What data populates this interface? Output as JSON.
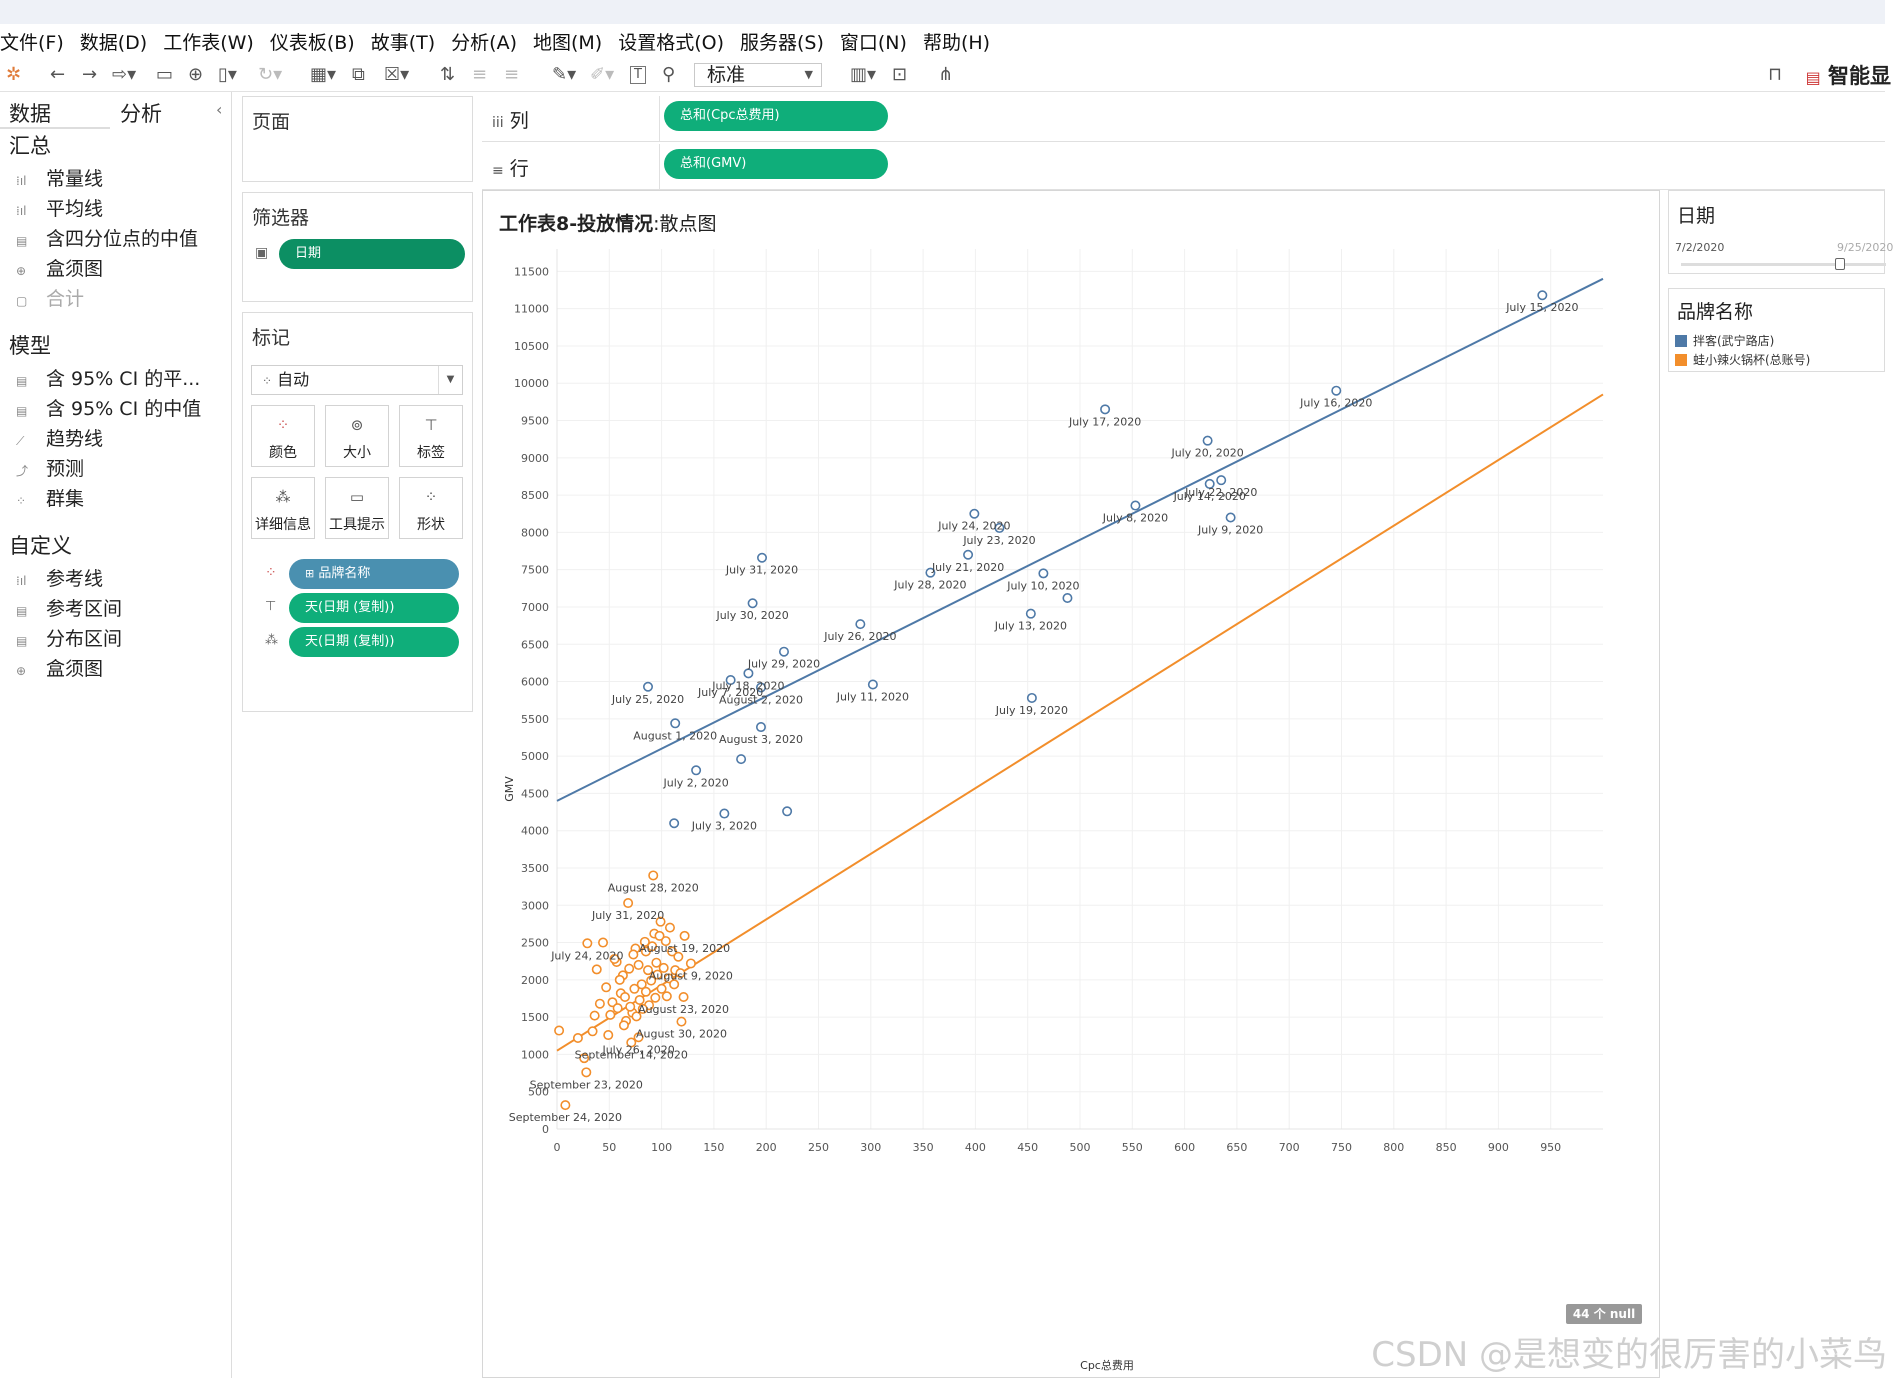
{
  "menu": [
    "文件(F)",
    "数据(D)",
    "工作表(W)",
    "仪表板(B)",
    "故事(T)",
    "分析(A)",
    "地图(M)",
    "设置格式(O)",
    "服务器(S)",
    "窗口(N)",
    "帮助(H)"
  ],
  "toolbar": {
    "zoom": "标准",
    "brand": "智能显"
  },
  "left": {
    "tabs": [
      "数据",
      "分析"
    ],
    "sections": [
      {
        "title": "汇总",
        "items": [
          {
            "label": "常量线",
            "enabled": true
          },
          {
            "label": "平均线",
            "enabled": true
          },
          {
            "label": "含四分位点的中值",
            "enabled": true
          },
          {
            "label": "盒须图",
            "enabled": true
          },
          {
            "label": "合计",
            "enabled": false
          }
        ]
      },
      {
        "title": "模型",
        "items": [
          {
            "label": "含 95% CI 的平...",
            "enabled": true
          },
          {
            "label": "含 95% CI 的中值",
            "enabled": true
          },
          {
            "label": "趋势线",
            "enabled": true
          },
          {
            "label": "预测",
            "enabled": true
          },
          {
            "label": "群集",
            "enabled": true
          }
        ]
      },
      {
        "title": "自定义",
        "items": [
          {
            "label": "参考线",
            "enabled": true
          },
          {
            "label": "参考区间",
            "enabled": true
          },
          {
            "label": "分布区间",
            "enabled": true
          },
          {
            "label": "盒须图",
            "enabled": true
          }
        ]
      }
    ]
  },
  "pages": {
    "title": "页面"
  },
  "filters": {
    "title": "筛选器",
    "pill": "日期"
  },
  "marks": {
    "title": "标记",
    "type": "自动",
    "buttons": [
      "颜色",
      "大小",
      "标签",
      "详细信息",
      "工具提示",
      "形状"
    ],
    "pills": [
      "品牌名称",
      "天(日期 (复制))",
      "天(日期 (复制))"
    ]
  },
  "shelves": {
    "columns_label": "列",
    "columns_pill": "总和(Cpc总费用)",
    "rows_label": "行",
    "rows_pill": "总和(GMV)"
  },
  "view": {
    "title_bold": "工作表8-投放情况",
    "title_rest": ":散点图",
    "null_badge": "44 个 null"
  },
  "date_filter": {
    "title": "日期",
    "start": "7/2/2020",
    "end": "9/25/2020"
  },
  "legend": {
    "title": "品牌名称",
    "items": [
      {
        "label": "拌客(武宁路店)",
        "color": "#4e79a7"
      },
      {
        "label": "蛙小辣火锅杯(总账号)",
        "color": "#f28e2b"
      }
    ]
  },
  "watermark": "CSDN @是想变的很厉害的小菜鸟",
  "chart_data": {
    "type": "scatter",
    "xlabel": "Cpc总费用",
    "ylabel": "GMV",
    "xlim": [
      0,
      1000
    ],
    "ylim": [
      0,
      11800
    ],
    "xticks": [
      0,
      50,
      100,
      150,
      200,
      250,
      300,
      350,
      400,
      450,
      500,
      550,
      600,
      650,
      700,
      750,
      800,
      850,
      900,
      950
    ],
    "yticks": [
      0,
      500,
      1000,
      1500,
      2000,
      2500,
      3000,
      3500,
      4000,
      4500,
      5000,
      5500,
      6000,
      6500,
      7000,
      7500,
      8000,
      8500,
      9000,
      9500,
      10000,
      10500,
      11000,
      11500
    ],
    "grid": true,
    "trendlines": [
      {
        "series": "拌客(武宁路店)",
        "x": [
          0,
          1000
        ],
        "y": [
          4400,
          11400
        ]
      },
      {
        "series": "蛙小辣火锅杯(总账号)",
        "x": [
          0,
          1000
        ],
        "y": [
          1050,
          9850
        ]
      }
    ],
    "series": [
      {
        "name": "拌客(武宁路店)",
        "color": "#4e79a7",
        "points": [
          {
            "x": 942,
            "y": 11180,
            "label": "July 15, 2020"
          },
          {
            "x": 745,
            "y": 9900,
            "label": "July 16, 2020"
          },
          {
            "x": 524,
            "y": 9650,
            "label": "July 17, 2020"
          },
          {
            "x": 622,
            "y": 9230,
            "label": "July 20, 2020"
          },
          {
            "x": 635,
            "y": 8700,
            "label": "July 22, 2020"
          },
          {
            "x": 624,
            "y": 8650,
            "label": "July 14, 2020"
          },
          {
            "x": 553,
            "y": 8360,
            "label": "July 8, 2020"
          },
          {
            "x": 644,
            "y": 8200,
            "label": "July 9, 2020"
          },
          {
            "x": 399,
            "y": 8250,
            "label": "July 24, 2020"
          },
          {
            "x": 423,
            "y": 8060,
            "label": "July 23, 2020"
          },
          {
            "x": 393,
            "y": 7700,
            "label": "July 21, 2020"
          },
          {
            "x": 196,
            "y": 7660,
            "label": "July 31, 2020"
          },
          {
            "x": 357,
            "y": 7460,
            "label": "July 28, 2020"
          },
          {
            "x": 465,
            "y": 7450,
            "label": "July 10, 2020"
          },
          {
            "x": 488,
            "y": 7120,
            "label": ""
          },
          {
            "x": 187,
            "y": 7050,
            "label": "July 30, 2020"
          },
          {
            "x": 453,
            "y": 6910,
            "label": "July 13, 2020"
          },
          {
            "x": 290,
            "y": 6770,
            "label": "July 26, 2020"
          },
          {
            "x": 217,
            "y": 6400,
            "label": "July 29, 2020"
          },
          {
            "x": 183,
            "y": 6110,
            "label": "July 18, 2020"
          },
          {
            "x": 166,
            "y": 6020,
            "label": "July 7, 2020"
          },
          {
            "x": 87,
            "y": 5930,
            "label": "July 25, 2020"
          },
          {
            "x": 195,
            "y": 5920,
            "label": "August 2, 2020"
          },
          {
            "x": 302,
            "y": 5960,
            "label": "July 11, 2020"
          },
          {
            "x": 454,
            "y": 5780,
            "label": "July 19, 2020"
          },
          {
            "x": 113,
            "y": 5440,
            "label": "August 1, 2020"
          },
          {
            "x": 195,
            "y": 5390,
            "label": "August 3, 2020"
          },
          {
            "x": 176,
            "y": 4960,
            "label": ""
          },
          {
            "x": 133,
            "y": 4810,
            "label": "July 2, 2020"
          },
          {
            "x": 112,
            "y": 4100,
            "label": ""
          },
          {
            "x": 160,
            "y": 4230,
            "label": "July 3, 2020"
          },
          {
            "x": 220,
            "y": 4260,
            "label": ""
          }
        ]
      },
      {
        "name": "蛙小辣火锅杯(总账号)",
        "color": "#f28e2b",
        "points": [
          {
            "x": 92,
            "y": 3400,
            "label": "August 28, 2020"
          },
          {
            "x": 68,
            "y": 3030,
            "label": "July 31, 2020"
          },
          {
            "x": 29,
            "y": 2490,
            "label": "July 24, 2020"
          },
          {
            "x": 122,
            "y": 2590,
            "label": "August 19, 2020"
          },
          {
            "x": 128,
            "y": 2220,
            "label": "August 9, 2020"
          },
          {
            "x": 121,
            "y": 1770,
            "label": "August 23, 2020"
          },
          {
            "x": 119,
            "y": 1440,
            "label": "August 30, 2020"
          },
          {
            "x": 78,
            "y": 1230,
            "label": "July 26, 2020"
          },
          {
            "x": 71,
            "y": 1160,
            "label": "September 14, 2020"
          },
          {
            "x": 28,
            "y": 760,
            "label": "September 23, 2020"
          },
          {
            "x": 8,
            "y": 320,
            "label": "September 24, 2020"
          },
          {
            "x": 2,
            "y": 1320,
            "label": ""
          },
          {
            "x": 20,
            "y": 1220,
            "label": ""
          },
          {
            "x": 26,
            "y": 950,
            "label": ""
          },
          {
            "x": 34,
            "y": 1310,
            "label": ""
          },
          {
            "x": 44,
            "y": 2500,
            "label": ""
          },
          {
            "x": 57,
            "y": 2240,
            "label": ""
          },
          {
            "x": 63,
            "y": 2060,
            "label": ""
          },
          {
            "x": 75,
            "y": 2420,
            "label": ""
          },
          {
            "x": 84,
            "y": 2510,
            "label": ""
          },
          {
            "x": 93,
            "y": 2620,
            "label": ""
          },
          {
            "x": 99,
            "y": 2780,
            "label": ""
          },
          {
            "x": 108,
            "y": 2700,
            "label": ""
          },
          {
            "x": 110,
            "y": 2380,
            "label": ""
          },
          {
            "x": 104,
            "y": 2520,
            "label": ""
          },
          {
            "x": 95,
            "y": 2230,
            "label": ""
          },
          {
            "x": 87,
            "y": 2130,
            "label": ""
          },
          {
            "x": 81,
            "y": 1940,
            "label": ""
          },
          {
            "x": 69,
            "y": 2150,
            "label": ""
          },
          {
            "x": 61,
            "y": 1820,
            "label": ""
          },
          {
            "x": 53,
            "y": 1700,
            "label": ""
          },
          {
            "x": 47,
            "y": 1900,
            "label": ""
          },
          {
            "x": 41,
            "y": 1680,
            "label": ""
          },
          {
            "x": 38,
            "y": 2140,
            "label": ""
          },
          {
            "x": 36,
            "y": 1520,
            "label": ""
          },
          {
            "x": 51,
            "y": 1530,
            "label": ""
          },
          {
            "x": 58,
            "y": 1620,
            "label": ""
          },
          {
            "x": 66,
            "y": 1450,
            "label": ""
          },
          {
            "x": 72,
            "y": 1560,
            "label": ""
          },
          {
            "x": 79,
            "y": 1730,
            "label": ""
          },
          {
            "x": 85,
            "y": 1840,
            "label": ""
          },
          {
            "x": 90,
            "y": 1990,
            "label": ""
          },
          {
            "x": 96,
            "y": 2070,
            "label": ""
          },
          {
            "x": 102,
            "y": 2160,
            "label": ""
          },
          {
            "x": 107,
            "y": 2020,
            "label": ""
          },
          {
            "x": 113,
            "y": 2130,
            "label": ""
          },
          {
            "x": 116,
            "y": 2310,
            "label": ""
          },
          {
            "x": 100,
            "y": 1880,
            "label": ""
          },
          {
            "x": 94,
            "y": 1760,
            "label": ""
          },
          {
            "x": 88,
            "y": 1660,
            "label": ""
          },
          {
            "x": 82,
            "y": 1610,
            "label": ""
          },
          {
            "x": 76,
            "y": 1510,
            "label": ""
          },
          {
            "x": 70,
            "y": 1640,
            "label": ""
          },
          {
            "x": 65,
            "y": 1770,
            "label": ""
          },
          {
            "x": 60,
            "y": 2000,
            "label": ""
          },
          {
            "x": 55,
            "y": 2280,
            "label": ""
          },
          {
            "x": 73,
            "y": 2340,
            "label": ""
          },
          {
            "x": 78,
            "y": 2200,
            "label": ""
          },
          {
            "x": 85,
            "y": 2380,
            "label": ""
          },
          {
            "x": 91,
            "y": 2450,
            "label": ""
          },
          {
            "x": 98,
            "y": 2590,
            "label": ""
          },
          {
            "x": 105,
            "y": 1780,
            "label": ""
          },
          {
            "x": 112,
            "y": 1940,
            "label": ""
          },
          {
            "x": 118,
            "y": 2090,
            "label": ""
          },
          {
            "x": 64,
            "y": 1390,
            "label": ""
          },
          {
            "x": 49,
            "y": 1260,
            "label": ""
          },
          {
            "x": 74,
            "y": 1880,
            "label": ""
          }
        ]
      }
    ]
  }
}
